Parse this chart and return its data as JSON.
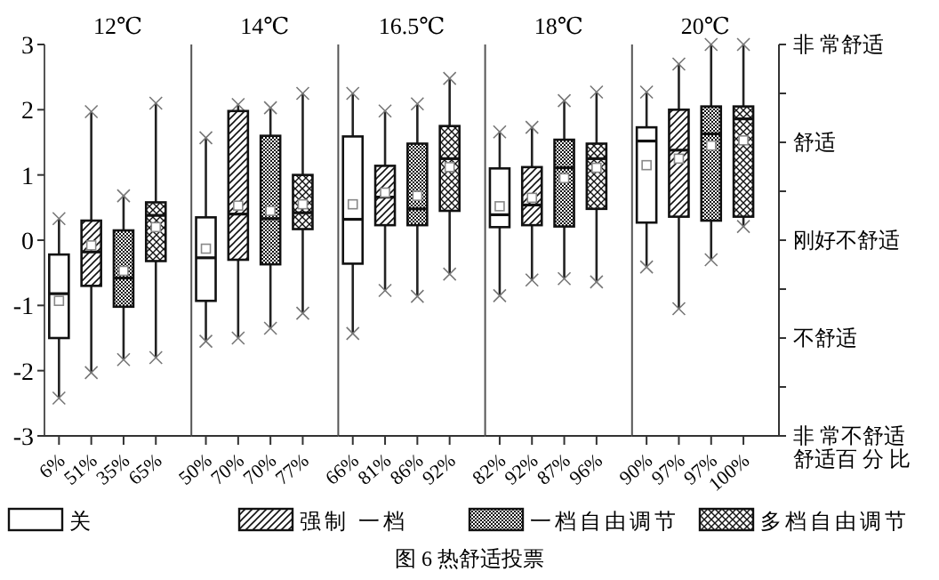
{
  "chart_data": [
    {
      "type": "box",
      "title": "12℃",
      "categories": [
        "6%",
        "51%",
        "35%",
        "65%"
      ],
      "ylim": [
        -3,
        3
      ],
      "yticks": [
        -3,
        -2,
        -1,
        0,
        1,
        2,
        3
      ],
      "legend": "bottom",
      "annotations": [
        "图 6 热舒适投票"
      ],
      "series": [
        {
          "name": "关",
          "color": "#ffffff",
          "boxes": [
            {
              "low": -2.42,
              "q1": -1.5,
              "median": -0.82,
              "q3": -0.22,
              "high": 0.33,
              "mean": -0.93
            },
            null,
            null,
            null
          ]
        },
        {
          "name": "强制 一档",
          "color": "#111111",
          "boxes": [
            null,
            {
              "low": -2.03,
              "q1": -0.7,
              "median": -0.18,
              "q3": 0.3,
              "high": 1.97,
              "mean": -0.08
            },
            null,
            null
          ]
        },
        {
          "name": "一档自由调节",
          "color": "#111111",
          "boxes": [
            null,
            null,
            {
              "low": -1.83,
              "q1": -1.02,
              "median": -0.58,
              "q3": 0.15,
              "high": 0.68,
              "mean": -0.47
            },
            null
          ]
        },
        {
          "name": "多档自由调节",
          "color": "#111111",
          "boxes": [
            null,
            null,
            null,
            {
              "low": -1.8,
              "q1": -0.32,
              "median": 0.38,
              "q3": 0.58,
              "high": 2.1,
              "mean": 0.2
            }
          ]
        }
      ]
    },
    {
      "type": "box",
      "title": "14℃",
      "categories": [
        "50%",
        "70%",
        "70%",
        "77%"
      ],
      "ylim": [
        -3,
        3
      ],
      "tick_labels": "x",
      "series": [
        {
          "color": "#ffffff",
          "boxes": [
            {
              "low": -1.55,
              "q1": -0.93,
              "median": -0.27,
              "q3": 0.35,
              "high": 1.57,
              "mean": -0.13
            },
            null,
            null,
            null
          ]
        },
        {
          "color": "#111111",
          "boxes": [
            null,
            {
              "low": -1.5,
              "q1": -0.3,
              "median": 0.4,
              "q3": 1.98,
              "high": 2.08,
              "mean": 0.53
            },
            null,
            null
          ]
        },
        {
          "color": "#111111",
          "boxes": [
            null,
            null,
            {
              "low": -1.35,
              "q1": -0.37,
              "median": 0.33,
              "q3": 1.6,
              "high": 2.03,
              "mean": 0.45
            },
            null
          ]
        },
        {
          "color": "#111111",
          "boxes": [
            null,
            null,
            null,
            {
              "low": -1.12,
              "q1": 0.17,
              "median": 0.42,
              "q3": 1.0,
              "high": 2.25,
              "mean": 0.55
            }
          ]
        }
      ]
    },
    {
      "type": "box",
      "title": "16.5℃",
      "categories": [
        "66%",
        "81%",
        "86%",
        "92%"
      ],
      "ylim": [
        -3,
        3
      ],
      "tick_labels": "x",
      "series": [
        {
          "color": "#ffffff",
          "boxes": [
            {
              "low": -1.43,
              "q1": -0.36,
              "median": 0.32,
              "q3": 1.59,
              "high": 2.25,
              "mean": 0.55
            },
            null,
            null,
            null
          ]
        },
        {
          "color": "#111111",
          "boxes": [
            null,
            {
              "low": -0.77,
              "q1": 0.23,
              "median": 0.66,
              "q3": 1.14,
              "high": 1.98,
              "mean": 0.73
            },
            null,
            null
          ]
        },
        {
          "color": "#111111",
          "boxes": [
            null,
            null,
            {
              "low": -0.86,
              "q1": 0.23,
              "median": 0.48,
              "q3": 1.48,
              "high": 2.09,
              "mean": 0.68
            },
            null
          ]
        },
        {
          "color": "#111111",
          "boxes": [
            null,
            null,
            null,
            {
              "low": -0.52,
              "q1": 0.45,
              "median": 1.25,
              "q3": 1.75,
              "high": 2.48,
              "mean": 1.12
            }
          ]
        }
      ]
    },
    {
      "type": "box",
      "title": "18℃",
      "categories": [
        "82%",
        "92%",
        "87%",
        "96%"
      ],
      "ylim": [
        -3,
        3
      ],
      "tick_labels": "x",
      "series": [
        {
          "color": "#ffffff",
          "boxes": [
            {
              "low": -0.85,
              "q1": 0.2,
              "median": 0.39,
              "q3": 1.1,
              "high": 1.66,
              "mean": 0.52
            },
            null,
            null,
            null
          ]
        },
        {
          "color": "#111111",
          "boxes": [
            null,
            {
              "low": -0.61,
              "q1": 0.23,
              "median": 0.54,
              "q3": 1.12,
              "high": 1.73,
              "mean": 0.65
            },
            null,
            null
          ]
        },
        {
          "color": "#111111",
          "boxes": [
            null,
            null,
            {
              "low": -0.59,
              "q1": 0.21,
              "median": 1.11,
              "q3": 1.54,
              "high": 2.14,
              "mean": 0.95
            },
            null
          ]
        },
        {
          "color": "#111111",
          "boxes": [
            null,
            null,
            null,
            {
              "low": -0.64,
              "q1": 0.48,
              "median": 1.25,
              "q3": 1.48,
              "high": 2.27,
              "mean": 1.11
            }
          ]
        }
      ]
    },
    {
      "type": "box",
      "title": "20℃",
      "categories": [
        "90%",
        "97%",
        "97%",
        "100%"
      ],
      "xlabel": "舒适百 分 比",
      "ylim": [
        -3,
        3
      ],
      "tick_labels": "x",
      "annotations": [
        "非 常舒适",
        "舒适",
        "刚好不舒适",
        "不舒适",
        "非 常不舒适"
      ],
      "series": [
        {
          "color": "#ffffff",
          "boxes": [
            {
              "low": -0.41,
              "q1": 0.27,
              "median": 1.52,
              "q3": 1.73,
              "high": 2.27,
              "mean": 1.15
            },
            null,
            null,
            null
          ]
        },
        {
          "color": "#111111",
          "boxes": [
            null,
            {
              "low": -1.05,
              "q1": 0.36,
              "median": 1.38,
              "q3": 2.0,
              "high": 2.7,
              "mean": 1.25
            },
            null,
            null
          ]
        },
        {
          "color": "#111111",
          "boxes": [
            null,
            null,
            {
              "low": -0.3,
              "q1": 0.3,
              "median": 1.63,
              "q3": 2.05,
              "high": 3.0,
              "mean": 1.45
            },
            null
          ]
        },
        {
          "color": "#111111",
          "boxes": [
            null,
            null,
            null,
            {
              "low": 0.21,
              "q1": 0.36,
              "median": 1.86,
              "q3": 2.05,
              "high": 3.0,
              "mean": 1.53
            }
          ]
        }
      ]
    }
  ]
}
